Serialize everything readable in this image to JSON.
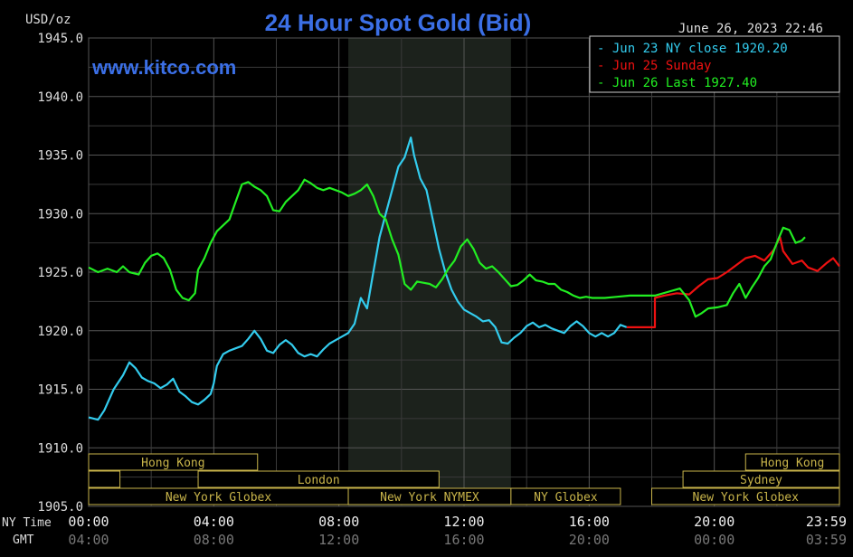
{
  "chart_data": {
    "type": "line",
    "title": "24 Hour Spot Gold (Bid)",
    "site": "www.kitco.com",
    "unit_label": "USD/oz",
    "timestamp": "June 26, 2023 22:46",
    "ylim": [
      1905,
      1945
    ],
    "yticks": [
      "1945.0",
      "1940.0",
      "1935.0",
      "1930.0",
      "1925.0",
      "1920.0",
      "1915.0",
      "1910.0",
      "1905.0"
    ],
    "xlim": [
      0,
      24
    ],
    "xrow_labels": {
      "ny": "NY Time",
      "gmt": "GMT"
    },
    "xticks_ny": [
      {
        "h": 0,
        "label": "00:00"
      },
      {
        "h": 4,
        "label": "04:00"
      },
      {
        "h": 8,
        "label": "08:00"
      },
      {
        "h": 12,
        "label": "12:00"
      },
      {
        "h": 16,
        "label": "16:00"
      },
      {
        "h": 20,
        "label": "20:00"
      },
      {
        "h": 24,
        "label": "23:59"
      }
    ],
    "xticks_gmt": [
      "04:00",
      "08:00",
      "12:00",
      "16:00",
      "20:00",
      "00:00",
      "03:59"
    ],
    "grid": true,
    "legend_position": "top-right",
    "shaded_region": [
      8.3,
      13.5
    ],
    "series": [
      {
        "name": "Jun 23 NY close 1920.20",
        "color": "#33ccee",
        "points": [
          [
            0,
            1912.6
          ],
          [
            0.3,
            1912.4
          ],
          [
            0.5,
            1913.2
          ],
          [
            0.8,
            1915.0
          ],
          [
            1.1,
            1916.2
          ],
          [
            1.3,
            1917.3
          ],
          [
            1.5,
            1916.8
          ],
          [
            1.7,
            1916.0
          ],
          [
            1.9,
            1915.7
          ],
          [
            2.1,
            1915.5
          ],
          [
            2.3,
            1915.1
          ],
          [
            2.5,
            1915.4
          ],
          [
            2.7,
            1915.9
          ],
          [
            2.9,
            1914.8
          ],
          [
            3.1,
            1914.4
          ],
          [
            3.3,
            1913.9
          ],
          [
            3.5,
            1913.7
          ],
          [
            3.7,
            1914.1
          ],
          [
            3.9,
            1914.6
          ],
          [
            4.0,
            1915.5
          ],
          [
            4.1,
            1917.0
          ],
          [
            4.3,
            1918.0
          ],
          [
            4.5,
            1918.3
          ],
          [
            4.7,
            1918.5
          ],
          [
            4.9,
            1918.7
          ],
          [
            5.1,
            1919.3
          ],
          [
            5.3,
            1920.0
          ],
          [
            5.5,
            1919.3
          ],
          [
            5.7,
            1918.3
          ],
          [
            5.9,
            1918.1
          ],
          [
            6.1,
            1918.8
          ],
          [
            6.3,
            1919.2
          ],
          [
            6.5,
            1918.8
          ],
          [
            6.7,
            1918.1
          ],
          [
            6.9,
            1917.8
          ],
          [
            7.1,
            1918.0
          ],
          [
            7.3,
            1917.8
          ],
          [
            7.5,
            1918.4
          ],
          [
            7.7,
            1918.9
          ],
          [
            7.9,
            1919.2
          ],
          [
            8.1,
            1919.5
          ],
          [
            8.3,
            1919.8
          ],
          [
            8.5,
            1920.6
          ],
          [
            8.7,
            1922.8
          ],
          [
            8.9,
            1921.9
          ],
          [
            9.1,
            1925.0
          ],
          [
            9.3,
            1928.0
          ],
          [
            9.5,
            1930.0
          ],
          [
            9.7,
            1932.0
          ],
          [
            9.9,
            1934.0
          ],
          [
            10.1,
            1934.8
          ],
          [
            10.3,
            1936.5
          ],
          [
            10.4,
            1935.0
          ],
          [
            10.6,
            1933.0
          ],
          [
            10.8,
            1932.0
          ],
          [
            11.0,
            1929.5
          ],
          [
            11.2,
            1927.0
          ],
          [
            11.4,
            1925.0
          ],
          [
            11.6,
            1923.5
          ],
          [
            11.8,
            1922.5
          ],
          [
            12.0,
            1921.8
          ],
          [
            12.2,
            1921.5
          ],
          [
            12.4,
            1921.2
          ],
          [
            12.6,
            1920.8
          ],
          [
            12.8,
            1920.9
          ],
          [
            13.0,
            1920.3
          ],
          [
            13.2,
            1919.0
          ],
          [
            13.4,
            1918.9
          ],
          [
            13.6,
            1919.4
          ],
          [
            13.8,
            1919.8
          ],
          [
            14.0,
            1920.4
          ],
          [
            14.2,
            1920.7
          ],
          [
            14.4,
            1920.3
          ],
          [
            14.6,
            1920.5
          ],
          [
            14.8,
            1920.2
          ],
          [
            15.0,
            1920.0
          ],
          [
            15.2,
            1919.8
          ],
          [
            15.4,
            1920.4
          ],
          [
            15.6,
            1920.8
          ],
          [
            15.8,
            1920.4
          ],
          [
            16.0,
            1919.8
          ],
          [
            16.2,
            1919.5
          ],
          [
            16.4,
            1919.8
          ],
          [
            16.6,
            1919.5
          ],
          [
            16.8,
            1919.8
          ],
          [
            17.0,
            1920.5
          ],
          [
            17.2,
            1920.3
          ]
        ]
      },
      {
        "name": "Jun 25 Sunday",
        "color": "#ee1111",
        "points": [
          [
            17.2,
            1920.3
          ],
          [
            18.1,
            1920.3
          ],
          [
            18.1,
            1922.8
          ],
          [
            18.4,
            1923.0
          ],
          [
            18.8,
            1923.2
          ],
          [
            19.2,
            1923.1
          ],
          [
            19.5,
            1923.8
          ],
          [
            19.8,
            1924.4
          ],
          [
            20.1,
            1924.5
          ],
          [
            20.4,
            1925.0
          ],
          [
            20.7,
            1925.6
          ],
          [
            21.0,
            1926.2
          ],
          [
            21.3,
            1926.4
          ],
          [
            21.6,
            1926.0
          ],
          [
            21.9,
            1926.9
          ],
          [
            22.1,
            1928.0
          ],
          [
            22.2,
            1926.8
          ],
          [
            22.5,
            1925.7
          ],
          [
            22.8,
            1926.0
          ],
          [
            23.0,
            1925.4
          ],
          [
            23.3,
            1925.1
          ],
          [
            23.6,
            1925.8
          ],
          [
            23.8,
            1926.2
          ],
          [
            24.0,
            1925.5
          ]
        ]
      },
      {
        "name": "Jun 26 Last 1927.40",
        "color": "#22ee22",
        "points": [
          [
            0,
            1925.4
          ],
          [
            0.3,
            1925.0
          ],
          [
            0.6,
            1925.3
          ],
          [
            0.9,
            1925.0
          ],
          [
            1.1,
            1925.5
          ],
          [
            1.3,
            1925.0
          ],
          [
            1.6,
            1924.8
          ],
          [
            1.8,
            1925.8
          ],
          [
            2.0,
            1926.4
          ],
          [
            2.2,
            1926.6
          ],
          [
            2.4,
            1926.2
          ],
          [
            2.6,
            1925.2
          ],
          [
            2.8,
            1923.5
          ],
          [
            3.0,
            1922.8
          ],
          [
            3.2,
            1922.6
          ],
          [
            3.4,
            1923.2
          ],
          [
            3.5,
            1925.2
          ],
          [
            3.7,
            1926.2
          ],
          [
            3.9,
            1927.5
          ],
          [
            4.1,
            1928.5
          ],
          [
            4.3,
            1929.0
          ],
          [
            4.5,
            1929.5
          ],
          [
            4.7,
            1931.0
          ],
          [
            4.9,
            1932.5
          ],
          [
            5.1,
            1932.7
          ],
          [
            5.3,
            1932.3
          ],
          [
            5.5,
            1932.0
          ],
          [
            5.7,
            1931.5
          ],
          [
            5.9,
            1930.3
          ],
          [
            6.1,
            1930.2
          ],
          [
            6.3,
            1931.0
          ],
          [
            6.5,
            1931.5
          ],
          [
            6.7,
            1932.0
          ],
          [
            6.9,
            1932.9
          ],
          [
            7.1,
            1932.6
          ],
          [
            7.3,
            1932.2
          ],
          [
            7.5,
            1932.0
          ],
          [
            7.7,
            1932.2
          ],
          [
            7.9,
            1932.0
          ],
          [
            8.1,
            1931.8
          ],
          [
            8.3,
            1931.5
          ],
          [
            8.5,
            1931.7
          ],
          [
            8.7,
            1932.0
          ],
          [
            8.9,
            1932.5
          ],
          [
            9.1,
            1931.5
          ],
          [
            9.3,
            1930.0
          ],
          [
            9.5,
            1929.5
          ],
          [
            9.7,
            1927.8
          ],
          [
            9.9,
            1926.5
          ],
          [
            10.1,
            1924.0
          ],
          [
            10.3,
            1923.5
          ],
          [
            10.5,
            1924.2
          ],
          [
            10.7,
            1924.1
          ],
          [
            10.9,
            1924.0
          ],
          [
            11.1,
            1923.7
          ],
          [
            11.3,
            1924.4
          ],
          [
            11.5,
            1925.3
          ],
          [
            11.7,
            1926.0
          ],
          [
            11.9,
            1927.2
          ],
          [
            12.1,
            1927.8
          ],
          [
            12.3,
            1927.0
          ],
          [
            12.5,
            1925.8
          ],
          [
            12.7,
            1925.3
          ],
          [
            12.9,
            1925.5
          ],
          [
            13.1,
            1925.0
          ],
          [
            13.3,
            1924.4
          ],
          [
            13.5,
            1923.8
          ],
          [
            13.7,
            1923.9
          ],
          [
            13.9,
            1924.3
          ],
          [
            14.1,
            1924.8
          ],
          [
            14.3,
            1924.3
          ],
          [
            14.5,
            1924.2
          ],
          [
            14.7,
            1924.0
          ],
          [
            14.9,
            1924.0
          ],
          [
            15.1,
            1923.5
          ],
          [
            15.3,
            1923.3
          ],
          [
            15.5,
            1923.0
          ],
          [
            15.7,
            1922.8
          ],
          [
            15.9,
            1922.9
          ],
          [
            16.1,
            1922.8
          ],
          [
            16.5,
            1922.8
          ],
          [
            16.9,
            1922.9
          ],
          [
            17.3,
            1923.0
          ],
          [
            17.7,
            1923.0
          ],
          [
            18.1,
            1923.0
          ],
          [
            18.5,
            1923.3
          ],
          [
            18.9,
            1923.6
          ],
          [
            19.2,
            1922.6
          ],
          [
            19.4,
            1921.2
          ],
          [
            19.6,
            1921.5
          ],
          [
            19.8,
            1921.9
          ],
          [
            20.1,
            1922.0
          ],
          [
            20.4,
            1922.2
          ],
          [
            20.6,
            1923.2
          ],
          [
            20.8,
            1924.0
          ],
          [
            21.0,
            1922.8
          ],
          [
            21.2,
            1923.7
          ],
          [
            21.4,
            1924.5
          ],
          [
            21.6,
            1925.5
          ],
          [
            21.8,
            1926.1
          ],
          [
            22.0,
            1927.5
          ],
          [
            22.2,
            1928.8
          ],
          [
            22.4,
            1928.6
          ],
          [
            22.6,
            1927.5
          ],
          [
            22.8,
            1927.7
          ],
          [
            22.9,
            1928.0
          ]
        ]
      }
    ],
    "sessions": [
      {
        "label": "Hong Kong",
        "row": 0,
        "start": 0,
        "end": 5.4
      },
      {
        "label": "",
        "row": 1,
        "start": 0,
        "end": 1.0
      },
      {
        "label": "London",
        "row": 1,
        "start": 3.5,
        "end": 11.2
      },
      {
        "label": "New York Globex",
        "row": 2,
        "start": 0,
        "end": 8.3
      },
      {
        "label": "New York NYMEX",
        "row": 2,
        "start": 8.3,
        "end": 13.5
      },
      {
        "label": "NY Globex",
        "row": 2,
        "start": 13.5,
        "end": 17.0
      },
      {
        "label": "Hong Kong",
        "row": 0,
        "start": 21.0,
        "end": 24.0
      },
      {
        "label": "Sydney",
        "row": 1,
        "start": 19.0,
        "end": 24.0
      },
      {
        "label": "New York Globex",
        "row": 2,
        "start": 18.0,
        "end": 24.0
      }
    ]
  }
}
